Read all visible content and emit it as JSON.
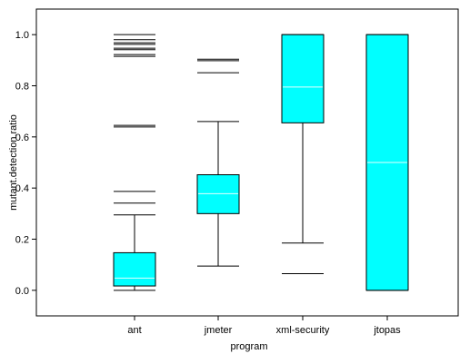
{
  "chart_data": {
    "type": "boxplot",
    "xlabel": "program",
    "ylabel": "mutant.detection.ratio",
    "ylim": [
      -0.1,
      1.1
    ],
    "yticks": [
      0.0,
      0.2,
      0.4,
      0.6,
      0.8,
      1.0
    ],
    "ytick_labels": [
      "0.0",
      "0.2",
      "0.4",
      "0.6",
      "0.8",
      "1.0"
    ],
    "categories": [
      "ant",
      "jmeter",
      "xml-security",
      "jtopas"
    ],
    "box_color": "#00ffff",
    "median_color": "#e6ffff",
    "grid": false,
    "boxes": [
      {
        "name": "ant",
        "whisker_low": 0.0,
        "q1": 0.017,
        "median": 0.048,
        "q3": 0.147,
        "whisker_high": 0.295,
        "outliers": [
          0.341,
          0.387,
          0.639,
          0.645,
          0.915,
          0.922,
          0.941,
          0.947,
          0.962,
          0.968,
          0.98,
          1.0
        ]
      },
      {
        "name": "jmeter",
        "whisker_low": 0.095,
        "q1": 0.3,
        "median": 0.378,
        "q3": 0.452,
        "whisker_high": 0.66,
        "outliers": [
          0.851,
          0.898,
          0.904
        ]
      },
      {
        "name": "xml-security",
        "whisker_low": 0.185,
        "q1": 0.655,
        "median": 0.795,
        "q3": 1.0,
        "whisker_high": 1.0,
        "outliers": [
          0.065
        ]
      },
      {
        "name": "jtopas",
        "whisker_low": 0.0,
        "q1": 0.0,
        "median": 0.5,
        "q3": 1.0,
        "whisker_high": 1.0,
        "outliers": []
      }
    ]
  }
}
